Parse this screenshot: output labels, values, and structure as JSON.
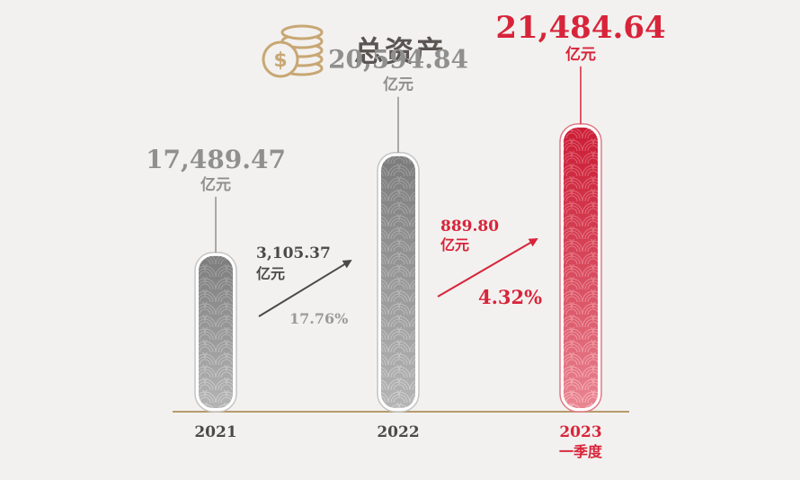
{
  "header": {
    "title": "总资产",
    "icon": "coins-icon"
  },
  "colors": {
    "gray": "#8f8f8f",
    "red": "#d8243a",
    "axis": "#b89a6c",
    "title": "#5a5552",
    "dark": "#4a4a4a"
  },
  "chart_data": {
    "type": "bar",
    "title": "总资产",
    "unit": "亿元",
    "categories": [
      "2021",
      "2022",
      "2023\n一季度"
    ],
    "category_lines": [
      [
        "2021"
      ],
      [
        "2022"
      ],
      [
        "2023",
        "一季度"
      ]
    ],
    "values": [
      17489.47,
      20594.84,
      21484.64
    ],
    "value_labels": [
      "17,489.47",
      "20,594.84",
      "21,484.64"
    ],
    "highlight_index": 2,
    "annotations": [
      {
        "from": 0,
        "to": 1,
        "amount": "3,105.37",
        "unit": "亿元",
        "growth": "17.76%"
      },
      {
        "from": 1,
        "to": 2,
        "amount": "889.80",
        "unit": "亿元",
        "growth": "4.32%"
      }
    ]
  }
}
